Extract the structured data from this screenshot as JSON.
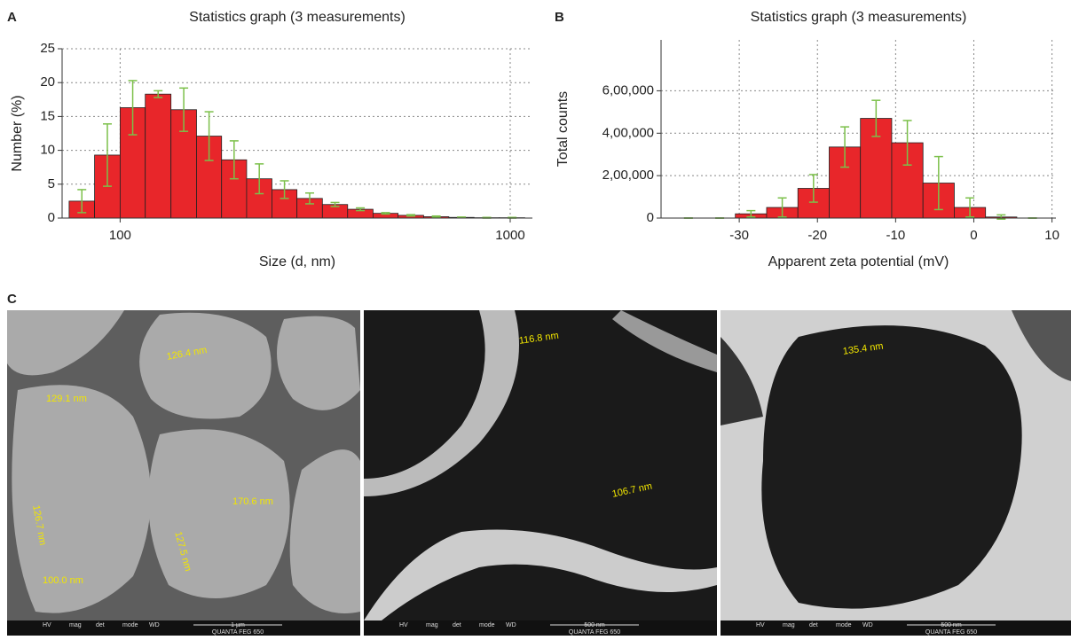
{
  "panel_labels": [
    "A",
    "B",
    "C"
  ],
  "chart_data": [
    {
      "type": "histogram",
      "title": "Statistics graph (3 measurements)",
      "x_label": "Size (d, nm)",
      "y_label": "Number (%)",
      "xscale": "log",
      "color": "#e8262a",
      "error_color": "#7cc04a",
      "grid": true,
      "bins": [
        74,
        86,
        100,
        116,
        135,
        157,
        182,
        211,
        245,
        284,
        330,
        383,
        445,
        516,
        600,
        696,
        808,
        938,
        1090
      ],
      "values": [
        2.5,
        9.3,
        16.3,
        18.3,
        16.0,
        12.1,
        8.6,
        5.8,
        4.2,
        2.9,
        2.0,
        1.3,
        0.7,
        0.4,
        0.2,
        0.1,
        0.05,
        0.05
      ],
      "errors": [
        1.7,
        4.6,
        4.0,
        0.5,
        3.2,
        3.6,
        2.8,
        2.2,
        1.3,
        0.8,
        0.3,
        0.2,
        0.1,
        0.1,
        0.1,
        0.05,
        0.05,
        0.05
      ],
      "xlim": [
        71,
        1140
      ],
      "xticks": [
        100,
        1000
      ],
      "ylim": [
        0,
        25
      ],
      "yticks": [
        0,
        5,
        10,
        15,
        20,
        25
      ]
    },
    {
      "type": "histogram",
      "title": "Statistics graph (3 measurements)",
      "x_label": "Apparent zeta potential (mV)",
      "y_label": "Total counts",
      "xscale": "linear",
      "color": "#e8262a",
      "error_color": "#7cc04a",
      "grid": true,
      "bins": [
        -38.5,
        -34.5,
        -30.5,
        -26.5,
        -22.5,
        -18.5,
        -14.5,
        -10.5,
        -6.5,
        -2.5,
        1.5,
        5.5,
        9.5
      ],
      "values": [
        0,
        0,
        20000,
        50000,
        140000,
        335000,
        470000,
        355000,
        165000,
        50000,
        5000,
        0
      ],
      "errors": [
        0,
        0,
        15000,
        45000,
        65000,
        95000,
        85000,
        105000,
        125000,
        45000,
        10000,
        0
      ],
      "xlim": [
        -40,
        10.5
      ],
      "xticks": [
        -30,
        -20,
        -10,
        0,
        10
      ],
      "ylim": [
        0,
        840000
      ],
      "yticks": [
        0,
        {
          "value": 200000,
          "label": "2,00,000"
        },
        {
          "value": 400000,
          "label": "4,00,000"
        },
        {
          "value": 600000,
          "label": "6,00,000"
        }
      ]
    }
  ],
  "micrographs": [
    {
      "annotations": [
        "126.4 nm",
        "129.1 nm",
        "126.7 nm",
        "170.6 nm",
        "127.5 nm",
        "100.0 nm"
      ],
      "scale_bar": "1 µm",
      "instrument": "QUANTA FEG 650"
    },
    {
      "annotations": [
        "116.8 nm",
        "106.7 nm"
      ],
      "scale_bar": "500 nm",
      "instrument": "QUANTA FEG 650"
    },
    {
      "annotations": [
        "135.4 nm"
      ],
      "scale_bar": "500 nm",
      "instrument": "QUANTA FEG 650"
    }
  ],
  "info_headers": [
    "HV",
    "mag",
    "det",
    "mode",
    "WD"
  ]
}
